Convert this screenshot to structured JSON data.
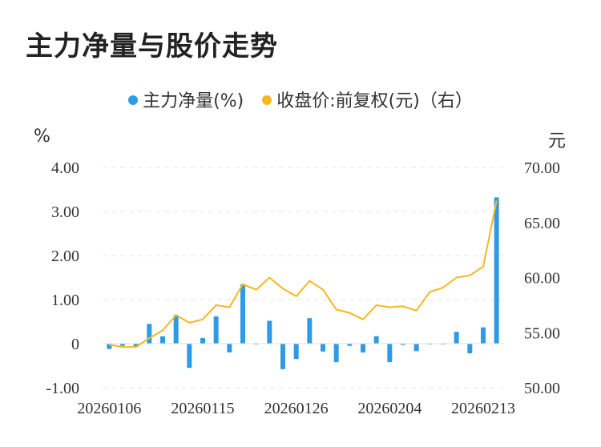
{
  "title": "主力净量与股价走势",
  "legend": {
    "bar_label": "主力净量(%)",
    "line_label": "收盘价:前复权(元)（右）"
  },
  "left_unit": "%",
  "right_unit": "元",
  "colors": {
    "bar": "#2e9be6",
    "line": "#f5b81c",
    "grid": "#e6e6e6"
  },
  "chart_data": {
    "type": "bar+line",
    "x_tick_labels": [
      "20260106",
      "20260115",
      "20260126",
      "20260204",
      "20260213"
    ],
    "y_left": {
      "ticks": [
        "-1.00",
        "0",
        "1.00",
        "2.00",
        "3.00",
        "4.00"
      ],
      "lim": [
        -1,
        4
      ]
    },
    "y_right": {
      "ticks": [
        "50.00",
        "55.00",
        "60.00",
        "65.00",
        "70.00"
      ],
      "lim": [
        50,
        70
      ]
    },
    "grid": "horizontal dashed",
    "series": [
      {
        "name": "主力净量(%)",
        "kind": "bar",
        "values": [
          -0.12,
          -0.05,
          -0.08,
          0.45,
          0.17,
          0.65,
          -0.55,
          0.13,
          0.62,
          -0.2,
          1.35,
          0.0,
          0.52,
          -0.58,
          -0.35,
          0.58,
          -0.18,
          -0.42,
          -0.05,
          -0.2,
          0.17,
          -0.42,
          -0.03,
          -0.17,
          0.0,
          0.0,
          0.27,
          -0.22,
          0.37,
          3.32
        ]
      },
      {
        "name": "收盘价:前复权(元)（右）",
        "kind": "line",
        "values": [
          53.9,
          53.7,
          53.7,
          54.5,
          55.2,
          56.6,
          55.9,
          56.2,
          57.5,
          57.3,
          59.4,
          58.9,
          60.0,
          59.0,
          58.3,
          59.7,
          58.9,
          57.1,
          56.8,
          56.2,
          57.5,
          57.3,
          57.4,
          57.0,
          58.7,
          59.1,
          60.0,
          60.2,
          61.0,
          67.0
        ]
      }
    ]
  }
}
